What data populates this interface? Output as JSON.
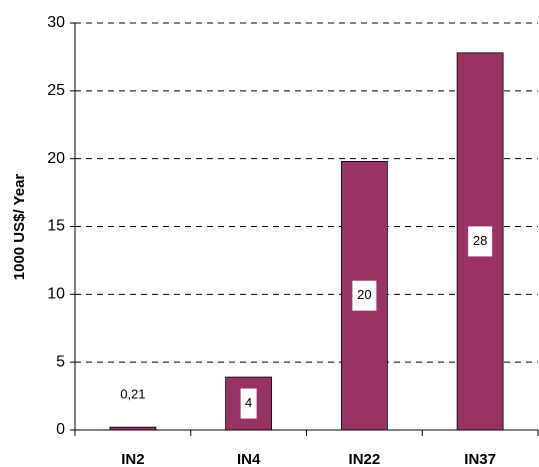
{
  "chart_data": {
    "type": "bar",
    "y_label": "1000 US$/ Year",
    "categories": [
      "IN2",
      "IN4",
      "IN22",
      "IN37"
    ],
    "values": [
      0.21,
      3.9,
      19.8,
      27.8
    ],
    "value_labels": [
      "0,21",
      "4",
      "20",
      "28"
    ],
    "color": "#993366",
    "ylim": [
      0,
      30
    ],
    "yticks": [
      0,
      5,
      10,
      15,
      20,
      25,
      30
    ],
    "grid": true
  }
}
